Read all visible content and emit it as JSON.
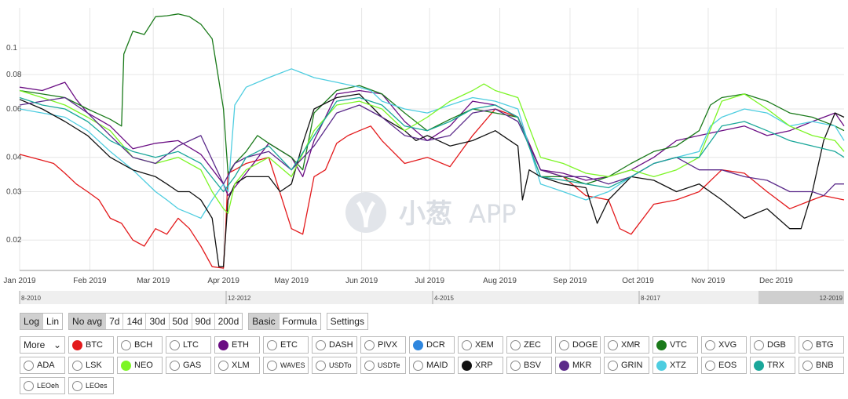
{
  "chart_data": {
    "type": "line",
    "y_scale": "log",
    "ylim": [
      0.0155,
      0.14
    ],
    "y_ticks": [
      "0.1",
      "0.08",
      "0.06",
      "0.04",
      "0.03",
      "0.02"
    ],
    "y_tick_values": [
      0.1,
      0.08,
      0.06,
      0.04,
      0.03,
      0.02
    ],
    "x_labels": [
      "Jan 2019",
      "Feb 2019",
      "Mar 2019",
      "Apr 2019",
      "May 2019",
      "Jun 2019",
      "Jul 2019",
      "Aug 2019",
      "Sep 2019",
      "Oct 2019",
      "Nov 2019",
      "Dec 2019"
    ],
    "x_day_of_year": [
      0,
      31,
      59,
      90,
      120,
      151,
      181,
      212,
      243,
      273,
      304,
      334
    ],
    "x_max_day": 364,
    "grid": true,
    "series": [
      {
        "name": "BTC",
        "color": "#e31a1c",
        "x": [
          0,
          10,
          15,
          20,
          25,
          30,
          35,
          40,
          45,
          50,
          55,
          60,
          65,
          70,
          75,
          80,
          85,
          90,
          91,
          92,
          95,
          100,
          110,
          120,
          125,
          130,
          135,
          140,
          145,
          150,
          155,
          160,
          170,
          180,
          190,
          200,
          210,
          220,
          230,
          240,
          250,
          260,
          265,
          270,
          280,
          290,
          300,
          310,
          320,
          330,
          340,
          350,
          355,
          364
        ],
        "y": [
          0.041,
          0.039,
          0.038,
          0.035,
          0.032,
          0.03,
          0.028,
          0.024,
          0.023,
          0.02,
          0.019,
          0.022,
          0.021,
          0.024,
          0.022,
          0.019,
          0.016,
          0.0158,
          0.022,
          0.035,
          0.036,
          0.038,
          0.04,
          0.022,
          0.021,
          0.034,
          0.036,
          0.045,
          0.048,
          0.05,
          0.052,
          0.046,
          0.038,
          0.04,
          0.037,
          0.048,
          0.06,
          0.056,
          0.036,
          0.034,
          0.029,
          0.028,
          0.022,
          0.021,
          0.027,
          0.028,
          0.03,
          0.036,
          0.035,
          0.03,
          0.026,
          0.028,
          0.029,
          0.028
        ]
      },
      {
        "name": "ETH",
        "color": "#6a0d83",
        "x": [
          0,
          10,
          20,
          25,
          30,
          40,
          50,
          60,
          70,
          80,
          90,
          92,
          100,
          110,
          120,
          125,
          130,
          140,
          150,
          160,
          170,
          180,
          190,
          200,
          210,
          220,
          230,
          240,
          250,
          260,
          270,
          280,
          290,
          300,
          310,
          320,
          330,
          340,
          350,
          360,
          364
        ],
        "y": [
          0.072,
          0.07,
          0.075,
          0.065,
          0.058,
          0.052,
          0.043,
          0.045,
          0.046,
          0.041,
          0.032,
          0.029,
          0.035,
          0.045,
          0.04,
          0.034,
          0.046,
          0.068,
          0.07,
          0.068,
          0.054,
          0.046,
          0.052,
          0.064,
          0.062,
          0.056,
          0.036,
          0.035,
          0.033,
          0.034,
          0.036,
          0.04,
          0.046,
          0.048,
          0.05,
          0.052,
          0.048,
          0.05,
          0.054,
          0.058,
          0.052
        ]
      },
      {
        "name": "VTC",
        "color": "#1a7a1a",
        "x": [
          0,
          10,
          20,
          30,
          40,
          45,
          46,
          50,
          55,
          60,
          65,
          70,
          75,
          80,
          85,
          90,
          92,
          95,
          100,
          105,
          110,
          120,
          125,
          130,
          140,
          150,
          160,
          170,
          180,
          190,
          200,
          210,
          220,
          230,
          240,
          250,
          260,
          270,
          280,
          290,
          300,
          305,
          310,
          320,
          330,
          340,
          350,
          360,
          364
        ],
        "y": [
          0.07,
          0.068,
          0.066,
          0.06,
          0.055,
          0.052,
          0.095,
          0.115,
          0.112,
          0.13,
          0.131,
          0.133,
          0.13,
          0.122,
          0.108,
          0.06,
          0.035,
          0.038,
          0.042,
          0.048,
          0.045,
          0.04,
          0.036,
          0.058,
          0.07,
          0.073,
          0.068,
          0.058,
          0.05,
          0.055,
          0.06,
          0.058,
          0.056,
          0.034,
          0.034,
          0.032,
          0.034,
          0.038,
          0.042,
          0.044,
          0.05,
          0.062,
          0.066,
          0.068,
          0.064,
          0.058,
          0.056,
          0.052,
          0.05
        ]
      },
      {
        "name": "XTZ",
        "color": "#4ecde0",
        "x": [
          0,
          10,
          20,
          30,
          40,
          50,
          60,
          65,
          70,
          75,
          80,
          85,
          90,
          92,
          95,
          100,
          110,
          120,
          130,
          140,
          150,
          155,
          160,
          170,
          180,
          190,
          200,
          210,
          220,
          230,
          240,
          250,
          260,
          270,
          280,
          290,
          300,
          305,
          310,
          320,
          330,
          340,
          350,
          360,
          364
        ],
        "y": [
          0.06,
          0.058,
          0.056,
          0.05,
          0.042,
          0.036,
          0.03,
          0.028,
          0.026,
          0.025,
          0.024,
          0.028,
          0.032,
          0.03,
          0.062,
          0.072,
          0.078,
          0.084,
          0.078,
          0.075,
          0.072,
          0.07,
          0.064,
          0.06,
          0.058,
          0.062,
          0.066,
          0.064,
          0.06,
          0.032,
          0.03,
          0.028,
          0.03,
          0.034,
          0.038,
          0.04,
          0.042,
          0.052,
          0.056,
          0.06,
          0.058,
          0.052,
          0.054,
          0.052,
          0.046
        ]
      },
      {
        "name": "XRP",
        "color": "#111111",
        "x": [
          0,
          10,
          20,
          30,
          40,
          50,
          60,
          65,
          70,
          75,
          80,
          85,
          88,
          90,
          92,
          95,
          100,
          110,
          115,
          120,
          125,
          130,
          140,
          150,
          160,
          170,
          175,
          180,
          190,
          200,
          210,
          220,
          222,
          225,
          230,
          240,
          250,
          255,
          260,
          270,
          280,
          290,
          300,
          310,
          320,
          330,
          340,
          345,
          350,
          355,
          360,
          364
        ],
        "y": [
          0.065,
          0.06,
          0.054,
          0.048,
          0.04,
          0.036,
          0.034,
          0.032,
          0.03,
          0.03,
          0.028,
          0.024,
          0.016,
          0.016,
          0.028,
          0.032,
          0.034,
          0.034,
          0.03,
          0.032,
          0.045,
          0.06,
          0.066,
          0.068,
          0.056,
          0.05,
          0.046,
          0.048,
          0.044,
          0.046,
          0.05,
          0.044,
          0.028,
          0.036,
          0.034,
          0.032,
          0.031,
          0.023,
          0.028,
          0.034,
          0.033,
          0.03,
          0.032,
          0.028,
          0.024,
          0.026,
          0.022,
          0.022,
          0.03,
          0.046,
          0.058,
          0.056
        ]
      },
      {
        "name": "NEO",
        "color": "#7cf525",
        "x": [
          0,
          10,
          20,
          30,
          40,
          50,
          60,
          70,
          80,
          85,
          90,
          92,
          95,
          100,
          110,
          120,
          130,
          140,
          150,
          160,
          170,
          180,
          190,
          200,
          205,
          210,
          220,
          230,
          240,
          250,
          260,
          270,
          280,
          290,
          300,
          310,
          320,
          330,
          340,
          350,
          360,
          364
        ],
        "y": [
          0.07,
          0.066,
          0.062,
          0.056,
          0.05,
          0.04,
          0.038,
          0.04,
          0.036,
          0.03,
          0.026,
          0.025,
          0.032,
          0.036,
          0.04,
          0.034,
          0.05,
          0.062,
          0.064,
          0.06,
          0.05,
          0.056,
          0.064,
          0.07,
          0.074,
          0.07,
          0.066,
          0.04,
          0.038,
          0.035,
          0.034,
          0.036,
          0.034,
          0.036,
          0.04,
          0.064,
          0.068,
          0.06,
          0.052,
          0.048,
          0.046,
          0.042
        ]
      },
      {
        "name": "MKR",
        "color": "#5b2a8a",
        "x": [
          0,
          10,
          20,
          30,
          40,
          50,
          60,
          70,
          80,
          90,
          95,
          100,
          110,
          120,
          130,
          140,
          150,
          160,
          170,
          180,
          190,
          200,
          210,
          220,
          230,
          240,
          250,
          260,
          270,
          280,
          290,
          300,
          310,
          320,
          330,
          340,
          350,
          355,
          360,
          364
        ],
        "y": [
          0.062,
          0.064,
          0.066,
          0.058,
          0.048,
          0.04,
          0.038,
          0.044,
          0.048,
          0.032,
          0.038,
          0.04,
          0.042,
          0.036,
          0.044,
          0.058,
          0.062,
          0.056,
          0.048,
          0.046,
          0.048,
          0.058,
          0.06,
          0.054,
          0.036,
          0.034,
          0.034,
          0.032,
          0.034,
          0.038,
          0.04,
          0.036,
          0.036,
          0.034,
          0.033,
          0.03,
          0.03,
          0.029,
          0.032,
          0.032
        ]
      },
      {
        "name": "TRX",
        "color": "#1aa79a",
        "x": [
          0,
          10,
          20,
          30,
          40,
          50,
          60,
          70,
          80,
          90,
          95,
          100,
          110,
          120,
          130,
          140,
          150,
          160,
          170,
          180,
          190,
          200,
          210,
          220,
          230,
          240,
          250,
          260,
          270,
          280,
          290,
          300,
          310,
          320,
          330,
          340,
          350,
          360,
          364
        ],
        "y": [
          0.066,
          0.062,
          0.06,
          0.054,
          0.046,
          0.042,
          0.04,
          0.042,
          0.038,
          0.03,
          0.034,
          0.04,
          0.044,
          0.036,
          0.048,
          0.064,
          0.066,
          0.062,
          0.052,
          0.05,
          0.054,
          0.06,
          0.062,
          0.056,
          0.034,
          0.033,
          0.032,
          0.031,
          0.034,
          0.038,
          0.04,
          0.04,
          0.052,
          0.054,
          0.05,
          0.046,
          0.044,
          0.042,
          0.04
        ]
      }
    ]
  },
  "watermark": {
    "cn": "小葱",
    "app": "APP"
  },
  "navigator": {
    "labels": [
      "8-2010",
      "12-2012",
      "4-2015",
      "8-2017",
      "12-2019"
    ]
  },
  "controls": {
    "scale": [
      {
        "label": "Log",
        "active": true
      },
      {
        "label": "Lin",
        "active": false
      }
    ],
    "avg": [
      {
        "label": "No avg",
        "active": true
      },
      {
        "label": "7d",
        "active": false
      },
      {
        "label": "14d",
        "active": false
      },
      {
        "label": "30d",
        "active": false
      },
      {
        "label": "50d",
        "active": false
      },
      {
        "label": "90d",
        "active": false
      },
      {
        "label": "200d",
        "active": false
      }
    ],
    "mode": [
      {
        "label": "Basic",
        "active": true
      },
      {
        "label": "Formula",
        "active": false
      }
    ],
    "settings": [
      {
        "label": "Settings",
        "active": false
      }
    ]
  },
  "more_label": "More",
  "coin_rows": [
    [
      {
        "name": "BTC",
        "color": "#e31a1c"
      },
      {
        "name": "BCH"
      },
      {
        "name": "LTC"
      },
      {
        "name": "ETH",
        "color": "#6a0d83"
      },
      {
        "name": "ETC"
      },
      {
        "name": "DASH"
      },
      {
        "name": "PIVX"
      },
      {
        "name": "DCR",
        "color": "#2e86de"
      },
      {
        "name": "XEM"
      },
      {
        "name": "ZEC"
      },
      {
        "name": "DOGE"
      },
      {
        "name": "XMR"
      },
      {
        "name": "VTC",
        "color": "#1a7a1a"
      },
      {
        "name": "XVG"
      },
      {
        "name": "DGB"
      },
      {
        "name": "BTG"
      }
    ],
    [
      {
        "name": "ADA"
      },
      {
        "name": "LSK"
      },
      {
        "name": "NEO",
        "color": "#7cf525"
      },
      {
        "name": "GAS"
      },
      {
        "name": "XLM"
      },
      {
        "name": "WAVES",
        "small": true
      },
      {
        "name": "USDTo",
        "small": true
      },
      {
        "name": "USDTe",
        "small": true
      },
      {
        "name": "MAID"
      },
      {
        "name": "XRP",
        "color": "#111111"
      },
      {
        "name": "BSV"
      },
      {
        "name": "MKR",
        "color": "#5b2a8a"
      },
      {
        "name": "GRIN"
      },
      {
        "name": "XTZ",
        "color": "#4ecde0"
      },
      {
        "name": "EOS"
      },
      {
        "name": "TRX",
        "color": "#1aa79a"
      },
      {
        "name": "BNB"
      }
    ],
    [
      {
        "name": "LEOeh",
        "small": true
      },
      {
        "name": "LEOes",
        "small": true
      }
    ]
  ]
}
